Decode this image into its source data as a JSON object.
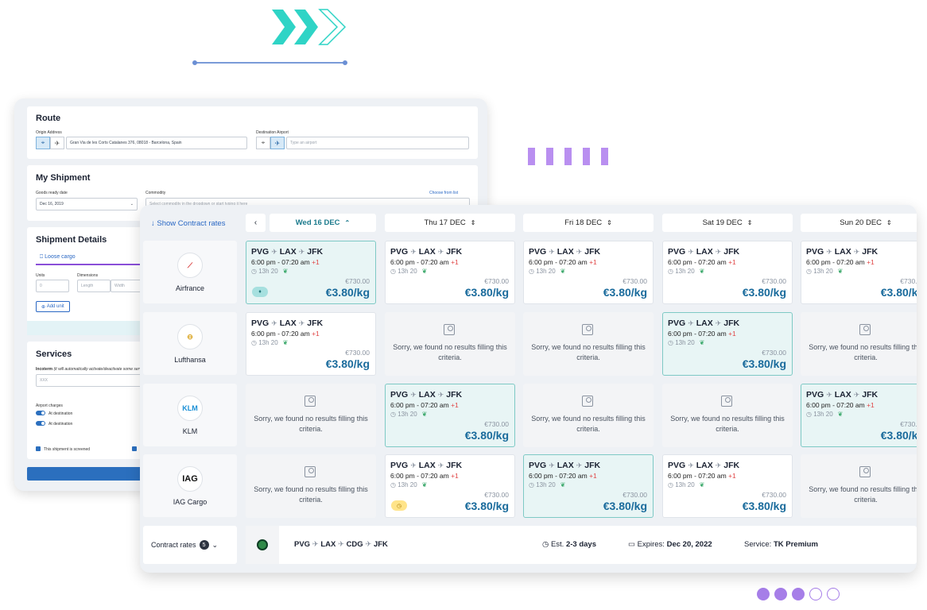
{
  "back_panel": {
    "route": {
      "title": "Route",
      "origin_label": "Origin Address",
      "origin_value": "Gran Via de les Corts Catalanes 376, 08018 - Barcelona, Spain",
      "dest_label": "Destination Airport",
      "dest_placeholder": "Type an airport"
    },
    "shipment": {
      "title": "My Shipment",
      "goods_label": "Goods ready date",
      "goods_value": "Dec 16, 2019",
      "commodity_label": "Commodity",
      "commodity_link": "Choose from list",
      "commodity_placeholder": "Select commodity in the dropdown or start typing it here"
    },
    "details": {
      "title": "Shipment Details",
      "tab": "Loose cargo",
      "units_label": "Units",
      "units_value": "0",
      "dims_label": "Dimensions",
      "length_ph": "Length",
      "width_ph": "Width",
      "add_unit": "Add unit"
    },
    "services": {
      "title": "Services",
      "incoterm_label": "Incoterm",
      "incoterm_note": "(it will automatically activate/deactivate some services)",
      "incoterm_value": "XXX",
      "airport_label": "Airport charges",
      "toggle1": "At destination",
      "toggle2": "At destination",
      "screened": "This shipment is screened"
    }
  },
  "front_panel": {
    "show_contract": "Show Contract rates",
    "days": [
      {
        "label": "Wed 16 DEC",
        "active": true
      },
      {
        "label": "Thu 17 DEC",
        "active": false
      },
      {
        "label": "Fri 18 DEC",
        "active": false
      },
      {
        "label": "Sat 19 DEC",
        "active": false
      },
      {
        "label": "Sun 20 DEC",
        "active": false
      }
    ],
    "airlines": [
      {
        "name": "Airfrance",
        "logo": "airfrance-logo"
      },
      {
        "name": "Lufthansa",
        "logo": "lufthansa-logo"
      },
      {
        "name": "KLM",
        "logo": "klm-logo"
      },
      {
        "name": "IAG Cargo",
        "logo": "IAG"
      }
    ],
    "flight": {
      "from": "PVG",
      "via": "LAX",
      "to": "JFK",
      "times": "6:00 pm - 07:20 am",
      "plus": "+1",
      "duration": "13h 20",
      "old_price": "€730.00",
      "price": "€3.80/kg"
    },
    "no_results": "Sorry, we found no results filling this criteria.",
    "grid": [
      [
        "sel",
        "normal",
        "normal",
        "normal",
        "normal"
      ],
      [
        "normal",
        "empty",
        "empty",
        "sel",
        "empty"
      ],
      [
        "empty",
        "sel",
        "empty",
        "empty",
        "sel"
      ],
      [
        "empty",
        "normal",
        "sel",
        "normal",
        "empty"
      ]
    ],
    "footer": {
      "contract_label": "Contract rates",
      "contract_count": "5",
      "route": [
        "PVG",
        "LAX",
        "CDG",
        "JFK"
      ],
      "est_prefix": "Est.",
      "est_value": "2-3 days",
      "expires_prefix": "Expires:",
      "expires_value": "Dec 20, 2022",
      "service_prefix": "Service:",
      "service_value": "TK Premium"
    }
  }
}
